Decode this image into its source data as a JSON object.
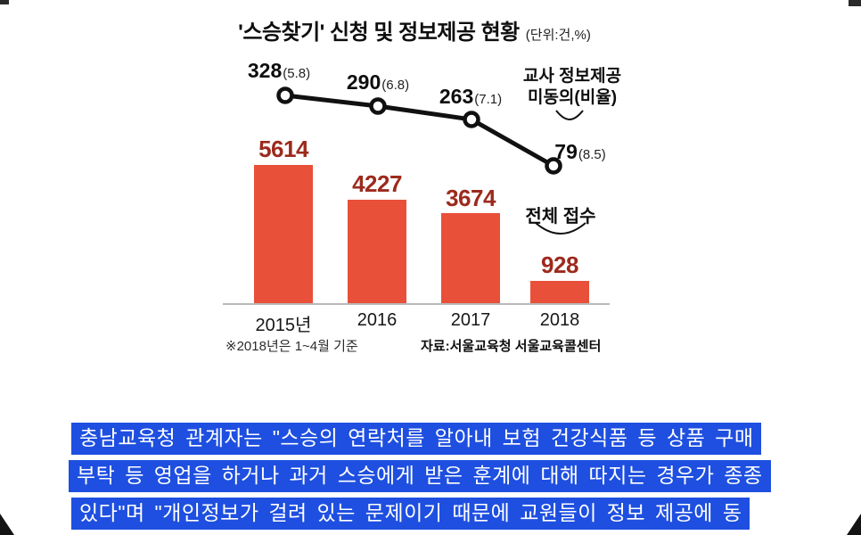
{
  "chart": {
    "title": "'스승찾기' 신청 및 정보제공 현황",
    "unit": "(단위:건,%)",
    "line_annotation": [
      "교사 정보제공",
      "미동의(비율)"
    ],
    "bar_annotation": "전체 접수",
    "footnote": "※2018년은 1~4월 기준",
    "source": "자료:서울교육청 서울교육콜센터",
    "colors": {
      "bar": "#e8503a",
      "line": "#111111",
      "bar_value_text": "#9c2a1d",
      "caption_highlight": "#1e4fe0",
      "caption_text": "#ffffff"
    }
  },
  "chart_data": {
    "type": "bar+line",
    "title": "'스승찾기' 신청 및 정보제공 현황",
    "unit": "건, %",
    "categories": [
      "2015년",
      "2016",
      "2017",
      "2018"
    ],
    "series": [
      {
        "name": "전체 접수",
        "chart_type": "bar",
        "values": [
          5614,
          4227,
          3674,
          928
        ]
      },
      {
        "name": "교사 정보제공 미동의(비율)",
        "chart_type": "line",
        "values": [
          328,
          290,
          263,
          79
        ],
        "ratios_percent": [
          5.8,
          6.8,
          7.1,
          8.5
        ],
        "ratio_labels": [
          "(5.8)",
          "(6.8)",
          "(7.1)",
          "(8.5)"
        ]
      }
    ],
    "footnote": "※2018년은 1~4월 기준",
    "source": "자료:서울교육청 서울교육콜센터",
    "grid": false,
    "legend_position": "inline-annotations"
  },
  "caption": {
    "lines": [
      "충남교육청 관계자는 \"스승의 연락처를 알아내 보험 건강식품 등 상품 구매",
      "부탁 등 영업을 하거나 과거 스승에게 받은 훈계에 대해 따지는 경우가 종종",
      "있다\"며 \"개인정보가 걸려 있는 문제이기 때문에 교원들이 정보 제공에 동"
    ]
  }
}
